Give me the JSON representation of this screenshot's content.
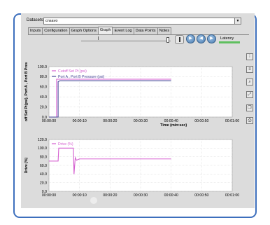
{
  "dataset": {
    "label": "Datasets:",
    "value": "cnsavo"
  },
  "tabs": [
    {
      "label": "Inputs"
    },
    {
      "label": "Configuration"
    },
    {
      "label": "Graph Options"
    },
    {
      "label": "Graph"
    },
    {
      "label": "Event Log"
    },
    {
      "label": "Data Points"
    },
    {
      "label": "Notes"
    }
  ],
  "active_tab": "Graph",
  "controls": {
    "latency_label": "Latency"
  },
  "icons": {
    "play": "play-icon",
    "back": "back-icon",
    "forward": "forward-icon",
    "stop": "stop-icon"
  },
  "colors": {
    "accent": "#3d6fbd",
    "series_pink": "#d55fd0",
    "series_blue": "#4a4a9a",
    "latency": "#5fbf5f"
  },
  "chart_data": [
    {
      "type": "line",
      "ylabel": "off Set Pt(psi), Port A , Port B Pres",
      "xlabel": "Time (min:sec)",
      "ylim": [
        0,
        100
      ],
      "yticks": [
        "100.0",
        "80.0",
        "60.0",
        "40.0",
        "20.0",
        "0.0"
      ],
      "xticks": [
        "00:00:00",
        "00:00:10",
        "00:00:20",
        "00:00:30",
        "00:00:40",
        "00:00:50",
        "00:01:00"
      ],
      "legend_position": "top-left",
      "series": [
        {
          "name": "Cutoff Set Pt (psi)",
          "x": [
            0,
            2.5,
            2.5,
            40
          ],
          "y": [
            0,
            0,
            75,
            75
          ]
        },
        {
          "name": "Port A , Port B Pressure (psi)",
          "x": [
            0,
            3,
            3,
            3.6,
            40
          ],
          "y": [
            0,
            0,
            70,
            72,
            72
          ]
        }
      ]
    },
    {
      "type": "line",
      "ylabel": "Drive (%)",
      "xlabel": "Time (min:sec)",
      "ylim": [
        0,
        120
      ],
      "yticks": [
        "120.0",
        "100.0",
        "80.0",
        "60.0",
        "40.0",
        "20.0",
        "0.0"
      ],
      "xticks": [
        "00:00:00",
        "00:00:10",
        "00:00:20",
        "00:00:30",
        "00:00:40",
        "00:00:50",
        "00:01:00"
      ],
      "legend_position": "top-left",
      "series": [
        {
          "name": "Drive (%)",
          "x": [
            0,
            3,
            3.2,
            8,
            8.2,
            8.6,
            9,
            10,
            40
          ],
          "y": [
            70,
            70,
            100,
            100,
            40,
            78,
            72,
            75,
            75
          ]
        }
      ]
    }
  ]
}
